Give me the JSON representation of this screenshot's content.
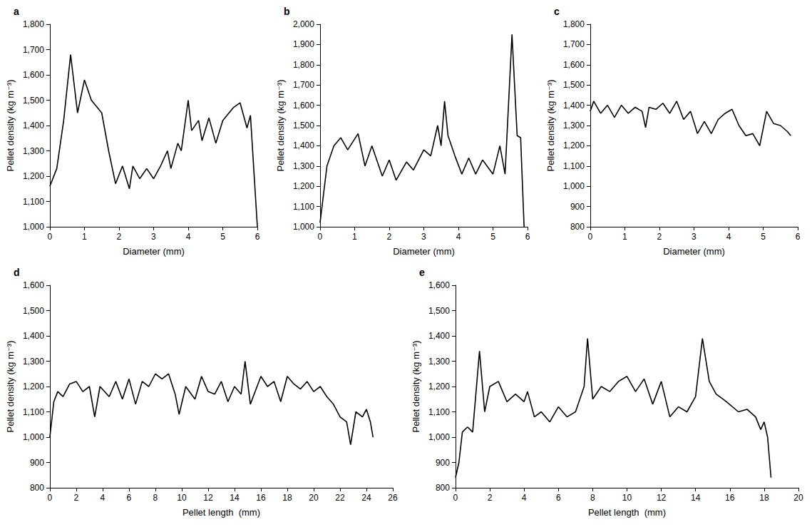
{
  "chart_data": [
    {
      "type": "line",
      "title": "a",
      "x_label": "Diameter (mm)",
      "y_label": "Pellet density (kg m⁻³)",
      "color": "#000000",
      "grid": false,
      "xlim": [
        0,
        6
      ],
      "xticks": [
        0,
        1,
        2,
        3,
        4,
        5,
        6
      ],
      "ylim": [
        1000,
        1800
      ],
      "yticks": [
        1000,
        1100,
        1200,
        1300,
        1400,
        1500,
        1600,
        1700,
        1800
      ],
      "x": [
        0,
        0.2,
        0.4,
        0.6,
        0.8,
        1.0,
        1.2,
        1.5,
        1.7,
        1.9,
        2.1,
        2.3,
        2.4,
        2.6,
        2.8,
        3.0,
        3.2,
        3.4,
        3.5,
        3.7,
        3.8,
        4.0,
        4.1,
        4.3,
        4.4,
        4.6,
        4.8,
        5.0,
        5.3,
        5.5,
        5.7,
        5.8,
        6.0
      ],
      "values": [
        1160,
        1230,
        1420,
        1680,
        1450,
        1580,
        1500,
        1450,
        1300,
        1170,
        1240,
        1150,
        1240,
        1190,
        1230,
        1190,
        1240,
        1300,
        1230,
        1330,
        1300,
        1500,
        1380,
        1420,
        1340,
        1430,
        1330,
        1420,
        1470,
        1490,
        1390,
        1440,
        1000
      ]
    },
    {
      "type": "line",
      "title": "b",
      "x_label": "Diameter (mm)",
      "y_label": "Pellet density (kg m⁻³)",
      "color": "#000000",
      "grid": false,
      "xlim": [
        0,
        6
      ],
      "xticks": [
        0,
        1,
        2,
        3,
        4,
        5,
        6
      ],
      "ylim": [
        1000,
        2000
      ],
      "yticks": [
        1000,
        1100,
        1200,
        1300,
        1400,
        1500,
        1600,
        1700,
        1800,
        1900,
        2000
      ],
      "x": [
        0,
        0.2,
        0.4,
        0.6,
        0.8,
        1.1,
        1.3,
        1.5,
        1.8,
        2.0,
        2.2,
        2.5,
        2.7,
        3.0,
        3.2,
        3.4,
        3.5,
        3.6,
        3.7,
        3.9,
        4.1,
        4.3,
        4.5,
        4.7,
        5.0,
        5.2,
        5.35,
        5.55,
        5.7,
        5.8,
        5.9
      ],
      "values": [
        1020,
        1300,
        1400,
        1440,
        1380,
        1460,
        1300,
        1400,
        1250,
        1330,
        1230,
        1320,
        1280,
        1380,
        1350,
        1500,
        1400,
        1620,
        1450,
        1350,
        1260,
        1340,
        1260,
        1330,
        1260,
        1400,
        1260,
        1950,
        1450,
        1440,
        1000
      ]
    },
    {
      "type": "line",
      "title": "c",
      "x_label": "Diameter (mm)",
      "y_label": "Pellet density (kg m⁻³)",
      "color": "#000000",
      "grid": false,
      "xlim": [
        0,
        6
      ],
      "xticks": [
        0,
        1,
        2,
        3,
        4,
        5,
        6
      ],
      "ylim": [
        800,
        1800
      ],
      "yticks": [
        800,
        900,
        1000,
        1100,
        1200,
        1300,
        1400,
        1500,
        1600,
        1700,
        1800
      ],
      "x": [
        0,
        0.1,
        0.3,
        0.5,
        0.7,
        0.9,
        1.1,
        1.3,
        1.5,
        1.6,
        1.7,
        1.9,
        2.1,
        2.3,
        2.5,
        2.7,
        2.9,
        3.1,
        3.3,
        3.5,
        3.7,
        3.9,
        4.1,
        4.3,
        4.5,
        4.7,
        4.9,
        5.1,
        5.3,
        5.5,
        5.7,
        5.8
      ],
      "values": [
        1370,
        1420,
        1360,
        1400,
        1340,
        1400,
        1360,
        1390,
        1370,
        1290,
        1390,
        1380,
        1410,
        1360,
        1420,
        1330,
        1370,
        1260,
        1320,
        1260,
        1330,
        1360,
        1380,
        1300,
        1250,
        1260,
        1200,
        1370,
        1310,
        1300,
        1270,
        1250
      ]
    },
    {
      "type": "line",
      "title": "d",
      "x_label": "Pellet length  (mm)",
      "y_label": "Pellet density (kg m⁻³)",
      "color": "#000000",
      "grid": false,
      "xlim": [
        0,
        26
      ],
      "xticks": [
        0,
        2,
        4,
        6,
        8,
        10,
        12,
        14,
        16,
        18,
        20,
        22,
        24,
        26
      ],
      "ylim": [
        800,
        1600
      ],
      "yticks": [
        800,
        900,
        1000,
        1100,
        1200,
        1300,
        1400,
        1500,
        1600
      ],
      "x": [
        0,
        0.3,
        0.6,
        1,
        1.5,
        2,
        2.5,
        3,
        3.4,
        3.8,
        4.5,
        5,
        5.5,
        6,
        6.5,
        7,
        7.5,
        8,
        8.5,
        9,
        9.5,
        9.8,
        10.3,
        11,
        11.5,
        12,
        12.5,
        13,
        13.5,
        14,
        14.5,
        14.8,
        15.2,
        16,
        16.5,
        17,
        17.5,
        18,
        18.5,
        19,
        19.5,
        20,
        20.5,
        21,
        21.5,
        22,
        22.5,
        22.8,
        23.2,
        23.7,
        24,
        24.3,
        24.5
      ],
      "values": [
        1000,
        1140,
        1180,
        1160,
        1210,
        1220,
        1180,
        1200,
        1080,
        1200,
        1160,
        1220,
        1150,
        1230,
        1130,
        1220,
        1200,
        1250,
        1230,
        1250,
        1170,
        1090,
        1200,
        1150,
        1240,
        1180,
        1170,
        1220,
        1140,
        1200,
        1170,
        1300,
        1130,
        1240,
        1200,
        1220,
        1140,
        1240,
        1210,
        1190,
        1220,
        1180,
        1200,
        1160,
        1130,
        1080,
        1060,
        970,
        1100,
        1080,
        1110,
        1060,
        1000
      ]
    },
    {
      "type": "line",
      "title": "e",
      "x_label": "Pellet length  (mm)",
      "y_label": "Pellet density (kg m⁻³)",
      "color": "#000000",
      "grid": false,
      "xlim": [
        0,
        20
      ],
      "xticks": [
        0,
        2,
        4,
        6,
        8,
        10,
        12,
        14,
        16,
        18,
        20
      ],
      "ylim": [
        800,
        1600
      ],
      "yticks": [
        800,
        900,
        1000,
        1100,
        1200,
        1300,
        1400,
        1500,
        1600
      ],
      "x": [
        0,
        0.2,
        0.4,
        0.7,
        1,
        1.4,
        1.7,
        2,
        2.5,
        3,
        3.5,
        4,
        4.2,
        4.6,
        5,
        5.5,
        6,
        6.5,
        7,
        7.5,
        7.7,
        8,
        8.5,
        9,
        9.5,
        10,
        10.5,
        11,
        11.5,
        12,
        12.5,
        13,
        13.5,
        14,
        14.4,
        14.8,
        15.2,
        15.8,
        16.5,
        17,
        17.5,
        17.8,
        18,
        18.2,
        18.4
      ],
      "values": [
        840,
        900,
        1020,
        1040,
        1020,
        1340,
        1100,
        1200,
        1220,
        1140,
        1170,
        1140,
        1180,
        1080,
        1100,
        1060,
        1120,
        1080,
        1100,
        1200,
        1390,
        1150,
        1200,
        1180,
        1220,
        1240,
        1180,
        1230,
        1130,
        1220,
        1080,
        1120,
        1100,
        1160,
        1390,
        1220,
        1170,
        1140,
        1100,
        1110,
        1080,
        1030,
        1060,
        1000,
        840
      ]
    }
  ]
}
